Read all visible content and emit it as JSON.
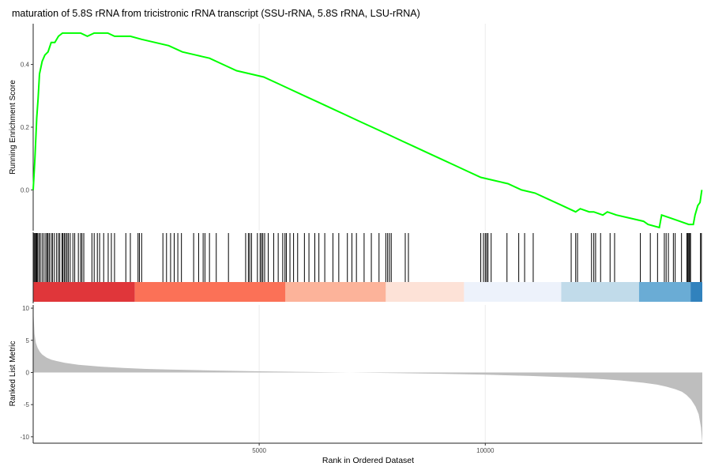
{
  "chart_data": {
    "type": "line",
    "title": "maturation of 5.8S rRNA from tricistronic rRNA transcript (SSU-rRNA, 5.8S rRNA, LSU-rRNA)",
    "xlabel": "Rank in Ordered Dataset",
    "xlim": [
      1,
      14800
    ],
    "xticks": [
      5000,
      10000
    ],
    "x_tick_labels": [
      "5000",
      "10000"
    ],
    "grid": true,
    "running_score": {
      "ylabel": "Running Enrichment Score",
      "ylim": [
        -0.13,
        0.53
      ],
      "yticks": [
        0.0,
        0.2,
        0.4
      ],
      "y_tick_labels": [
        "0.0",
        "0.2",
        "0.4"
      ],
      "color": "#00ff00",
      "x": [
        1,
        40,
        80,
        110,
        140,
        200,
        260,
        330,
        400,
        480,
        560,
        650,
        750,
        900,
        1050,
        1200,
        1350,
        1500,
        1650,
        1800,
        1950,
        2150,
        2400,
        2700,
        3000,
        3300,
        3600,
        3900,
        4200,
        4500,
        4800,
        5100,
        5400,
        5700,
        6000,
        6300,
        6600,
        6900,
        7200,
        7500,
        7800,
        8100,
        8400,
        8700,
        9000,
        9300,
        9600,
        9900,
        10200,
        10500,
        10800,
        11100,
        11400,
        11700,
        12000,
        12100,
        12300,
        12400,
        12600,
        12700,
        12900,
        13200,
        13500,
        13600,
        13850,
        13900,
        14100,
        14300,
        14500,
        14600,
        14640,
        14700,
        14750,
        14790
      ],
      "y": [
        0.0,
        0.1,
        0.23,
        0.29,
        0.37,
        0.41,
        0.43,
        0.44,
        0.47,
        0.47,
        0.49,
        0.5,
        0.5,
        0.5,
        0.5,
        0.49,
        0.5,
        0.5,
        0.5,
        0.49,
        0.49,
        0.49,
        0.48,
        0.47,
        0.46,
        0.44,
        0.43,
        0.42,
        0.4,
        0.38,
        0.37,
        0.36,
        0.34,
        0.32,
        0.3,
        0.28,
        0.26,
        0.24,
        0.22,
        0.2,
        0.18,
        0.16,
        0.14,
        0.12,
        0.1,
        0.08,
        0.06,
        0.04,
        0.03,
        0.02,
        0.0,
        -0.01,
        -0.03,
        -0.05,
        -0.07,
        -0.06,
        -0.07,
        -0.07,
        -0.08,
        -0.07,
        -0.08,
        -0.09,
        -0.1,
        -0.11,
        -0.12,
        -0.08,
        -0.09,
        -0.1,
        -0.11,
        -0.11,
        -0.08,
        -0.05,
        -0.04,
        0.0
      ]
    },
    "gene_hits": {
      "ranks": [
        20,
        40,
        60,
        80,
        100,
        130,
        160,
        200,
        240,
        280,
        310,
        330,
        360,
        400,
        430,
        470,
        520,
        560,
        590,
        640,
        660,
        690,
        720,
        750,
        780,
        820,
        880,
        920,
        1000,
        1050,
        1080,
        1120,
        1300,
        1350,
        1420,
        1470,
        1560,
        1660,
        1730,
        1800,
        2050,
        2150,
        2320,
        2350,
        2400,
        2870,
        2950,
        3040,
        3120,
        3200,
        3280,
        3550,
        3660,
        3760,
        3800,
        3900,
        4050,
        4320,
        4700,
        4760,
        4790,
        4830,
        4960,
        5020,
        5050,
        5080,
        5120,
        5200,
        5320,
        5420,
        5520,
        5570,
        5600,
        5680,
        5760,
        5850,
        6000,
        6100,
        6230,
        6320,
        6450,
        6630,
        6760,
        6950,
        7050,
        7150,
        7320,
        7480,
        7650,
        7800,
        7840,
        7880,
        7920,
        8230,
        8300,
        9900,
        9960,
        10000,
        10030,
        10060,
        10130,
        10480,
        10740,
        10870,
        11060,
        11900,
        12000,
        12040,
        12350,
        12400,
        12440,
        12550,
        12760,
        12860,
        13430,
        13650,
        13810,
        13960,
        14000,
        14050,
        14160,
        14200,
        14340,
        14460,
        14480,
        14500,
        14520,
        14540,
        14760,
        14780
      ]
    },
    "color_band": {
      "segments": [
        {
          "from": 1,
          "to": 2250,
          "color": "#e0363a"
        },
        {
          "from": 2250,
          "to": 5580,
          "color": "#fb7157"
        },
        {
          "from": 5580,
          "to": 7800,
          "color": "#fcb39a"
        },
        {
          "from": 7800,
          "to": 9530,
          "color": "#fde2d7"
        },
        {
          "from": 9530,
          "to": 11680,
          "color": "#edf2fb"
        },
        {
          "from": 11680,
          "to": 13400,
          "color": "#c1dbea"
        },
        {
          "from": 13400,
          "to": 14540,
          "color": "#6aacd5"
        },
        {
          "from": 14540,
          "to": 14800,
          "color": "#3182bd"
        }
      ]
    },
    "ranked_metric": {
      "ylabel": "Ranked List Metric",
      "ylim": [
        -11,
        10.5
      ],
      "yticks": [
        10,
        5,
        0,
        -5,
        -10
      ],
      "y_tick_labels": [
        "10",
        "5",
        "0",
        "-5",
        "-10"
      ],
      "color": "#bebebe",
      "x": [
        1,
        30,
        60,
        100,
        150,
        200,
        300,
        400,
        500,
        700,
        1000,
        1500,
        2000,
        2500,
        3000,
        4000,
        5000,
        6000,
        7000,
        7500,
        8000,
        9000,
        10000,
        11000,
        12000,
        12500,
        13000,
        13500,
        13800,
        14000,
        14200,
        14350,
        14450,
        14550,
        14650,
        14720,
        14770,
        14800
      ],
      "y": [
        10.0,
        6.0,
        4.6,
        3.8,
        3.2,
        2.8,
        2.3,
        2.0,
        1.8,
        1.5,
        1.2,
        0.9,
        0.7,
        0.55,
        0.45,
        0.3,
        0.18,
        0.08,
        0.0,
        -0.05,
        -0.1,
        -0.2,
        -0.35,
        -0.55,
        -0.8,
        -1.0,
        -1.25,
        -1.6,
        -1.9,
        -2.2,
        -2.6,
        -3.0,
        -3.5,
        -4.2,
        -5.3,
        -6.5,
        -8.5,
        -11.0
      ]
    }
  }
}
